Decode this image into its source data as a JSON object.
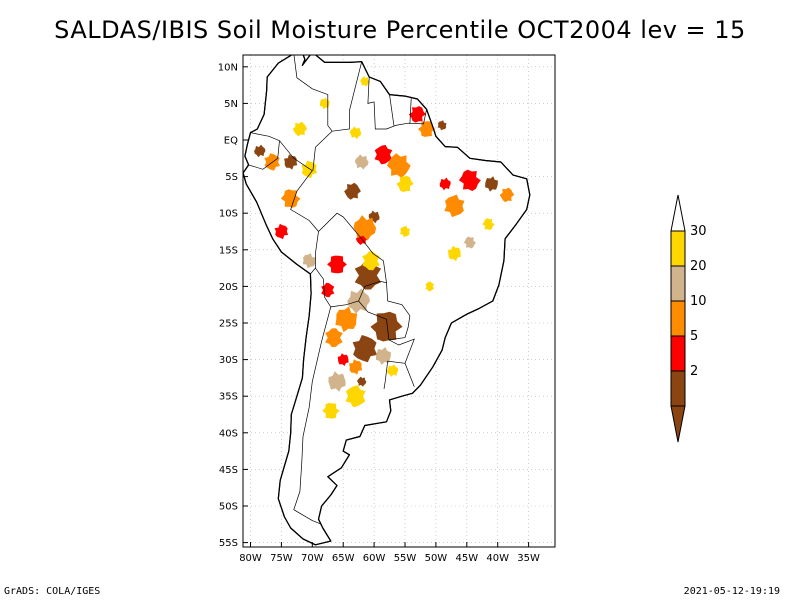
{
  "title": "SALDAS/IBIS Soil Moisture Percentile OCT2004 lev = 15",
  "footer": {
    "left": "GrADS: COLA/IGES",
    "right": "2021-05-12-19:19"
  },
  "axes": {
    "lat_ticks": [
      {
        "value": 10,
        "label": "10N"
      },
      {
        "value": 5,
        "label": "5N"
      },
      {
        "value": 0,
        "label": "EQ"
      },
      {
        "value": -5,
        "label": "5S"
      },
      {
        "value": -10,
        "label": "10S"
      },
      {
        "value": -15,
        "label": "15S"
      },
      {
        "value": -20,
        "label": "20S"
      },
      {
        "value": -25,
        "label": "25S"
      },
      {
        "value": -30,
        "label": "30S"
      },
      {
        "value": -35,
        "label": "35S"
      },
      {
        "value": -40,
        "label": "40S"
      },
      {
        "value": -45,
        "label": "45S"
      },
      {
        "value": -50,
        "label": "50S"
      },
      {
        "value": -55,
        "label": "55S"
      }
    ],
    "lon_ticks": [
      {
        "value": -80,
        "label": "80W"
      },
      {
        "value": -75,
        "label": "75W"
      },
      {
        "value": -70,
        "label": "70W"
      },
      {
        "value": -65,
        "label": "65W"
      },
      {
        "value": -60,
        "label": "60W"
      },
      {
        "value": -55,
        "label": "55W"
      },
      {
        "value": -50,
        "label": "50W"
      },
      {
        "value": -45,
        "label": "45W"
      },
      {
        "value": -40,
        "label": "40W"
      },
      {
        "value": -35,
        "label": "35W"
      }
    ],
    "lon_range": [
      -81,
      -32
    ],
    "lat_range": [
      -56,
      12
    ],
    "grid": true
  },
  "legend": {
    "placement": "right",
    "bins": [
      {
        "label": "2",
        "color": "#8b4513"
      },
      {
        "label": "5",
        "color": "#ff0000"
      },
      {
        "label": "10",
        "color": "#ff8c00"
      },
      {
        "label": "20",
        "color": "#d2b48c"
      },
      {
        "label": "30",
        "color": "#ffd700"
      }
    ],
    "top_color": "#ffffff",
    "bottom_color": "#8b4513"
  },
  "map": {
    "land_fill": "#ffffff",
    "outline_color": "#000000",
    "regions": [
      {
        "color": "#8b4513",
        "lon": -61.0,
        "lat": -18.5,
        "size": 2.4
      },
      {
        "color": "#8b4513",
        "lon": -58.0,
        "lat": -25.5,
        "size": 2.6
      },
      {
        "color": "#8b4513",
        "lon": -61.5,
        "lat": -28.5,
        "size": 2.2
      },
      {
        "color": "#8b4513",
        "lon": -63.5,
        "lat": -7.0,
        "size": 1.4
      },
      {
        "color": "#8b4513",
        "lon": -73.5,
        "lat": -3.0,
        "size": 1.2
      },
      {
        "color": "#8b4513",
        "lon": -78.5,
        "lat": -1.5,
        "size": 1.0
      },
      {
        "color": "#8b4513",
        "lon": -60.0,
        "lat": -10.5,
        "size": 1.0
      },
      {
        "color": "#8b4513",
        "lon": -41.0,
        "lat": -6.0,
        "size": 1.2
      },
      {
        "color": "#8b4513",
        "lon": -62.0,
        "lat": -33.0,
        "size": 0.8
      },
      {
        "color": "#8b4513",
        "lon": -49.0,
        "lat": 2.0,
        "size": 0.8
      },
      {
        "color": "#ff0000",
        "lon": -44.5,
        "lat": -5.5,
        "size": 1.8
      },
      {
        "color": "#ff0000",
        "lon": -58.5,
        "lat": -2.0,
        "size": 1.6
      },
      {
        "color": "#ff0000",
        "lon": -66.0,
        "lat": -17.0,
        "size": 1.6
      },
      {
        "color": "#ff0000",
        "lon": -67.5,
        "lat": -20.5,
        "size": 1.2
      },
      {
        "color": "#ff0000",
        "lon": -53.0,
        "lat": 3.5,
        "size": 1.4
      },
      {
        "color": "#ff0000",
        "lon": -75.0,
        "lat": -12.5,
        "size": 1.2
      },
      {
        "color": "#ff0000",
        "lon": -62.0,
        "lat": -13.5,
        "size": 1.0
      },
      {
        "color": "#ff0000",
        "lon": -65.0,
        "lat": -30.0,
        "size": 1.0
      },
      {
        "color": "#ff0000",
        "lon": -48.5,
        "lat": -6.0,
        "size": 1.0
      },
      {
        "color": "#ff8c00",
        "lon": -61.5,
        "lat": -12.0,
        "size": 2.0
      },
      {
        "color": "#ff8c00",
        "lon": -64.5,
        "lat": -24.5,
        "size": 2.0
      },
      {
        "color": "#ff8c00",
        "lon": -56.0,
        "lat": -3.5,
        "size": 2.0
      },
      {
        "color": "#ff8c00",
        "lon": -47.0,
        "lat": -9.0,
        "size": 1.8
      },
      {
        "color": "#ff8c00",
        "lon": -73.5,
        "lat": -8.0,
        "size": 1.6
      },
      {
        "color": "#ff8c00",
        "lon": -66.5,
        "lat": -27.0,
        "size": 1.6
      },
      {
        "color": "#ff8c00",
        "lon": -51.5,
        "lat": 1.5,
        "size": 1.4
      },
      {
        "color": "#ff8c00",
        "lon": -76.5,
        "lat": -3.0,
        "size": 1.4
      },
      {
        "color": "#ff8c00",
        "lon": -38.5,
        "lat": -7.5,
        "size": 1.2
      },
      {
        "color": "#ff8c00",
        "lon": -63.0,
        "lat": -31.0,
        "size": 1.2
      },
      {
        "color": "#d2b48c",
        "lon": -62.5,
        "lat": -22.0,
        "size": 2.0
      },
      {
        "color": "#d2b48c",
        "lon": -66.0,
        "lat": -33.0,
        "size": 1.6
      },
      {
        "color": "#d2b48c",
        "lon": -58.5,
        "lat": -29.5,
        "size": 1.4
      },
      {
        "color": "#d2b48c",
        "lon": -62.0,
        "lat": -3.0,
        "size": 1.2
      },
      {
        "color": "#d2b48c",
        "lon": -70.5,
        "lat": -16.5,
        "size": 1.2
      },
      {
        "color": "#d2b48c",
        "lon": -44.5,
        "lat": -14.0,
        "size": 1.0
      },
      {
        "color": "#ffd700",
        "lon": -63.0,
        "lat": -35.0,
        "size": 1.8
      },
      {
        "color": "#ffd700",
        "lon": -67.0,
        "lat": -37.0,
        "size": 1.4
      },
      {
        "color": "#ffd700",
        "lon": -60.5,
        "lat": -16.5,
        "size": 1.6
      },
      {
        "color": "#ffd700",
        "lon": -55.0,
        "lat": -6.0,
        "size": 1.4
      },
      {
        "color": "#ffd700",
        "lon": -70.5,
        "lat": -4.0,
        "size": 1.4
      },
      {
        "color": "#ffd700",
        "lon": -72.0,
        "lat": 1.5,
        "size": 1.2
      },
      {
        "color": "#ffd700",
        "lon": -47.0,
        "lat": -15.5,
        "size": 1.2
      },
      {
        "color": "#ffd700",
        "lon": -57.0,
        "lat": -31.5,
        "size": 1.0
      },
      {
        "color": "#ffd700",
        "lon": -63.0,
        "lat": 1.0,
        "size": 1.0
      },
      {
        "color": "#ffd700",
        "lon": -68.0,
        "lat": 5.0,
        "size": 0.9
      },
      {
        "color": "#ffd700",
        "lon": -61.5,
        "lat": 8.0,
        "size": 0.8
      },
      {
        "color": "#ffd700",
        "lon": -55.0,
        "lat": -12.5,
        "size": 0.9
      },
      {
        "color": "#ffd700",
        "lon": -41.5,
        "lat": -11.5,
        "size": 1.0
      },
      {
        "color": "#ffd700",
        "lon": -51.0,
        "lat": -20.0,
        "size": 0.8
      }
    ]
  }
}
